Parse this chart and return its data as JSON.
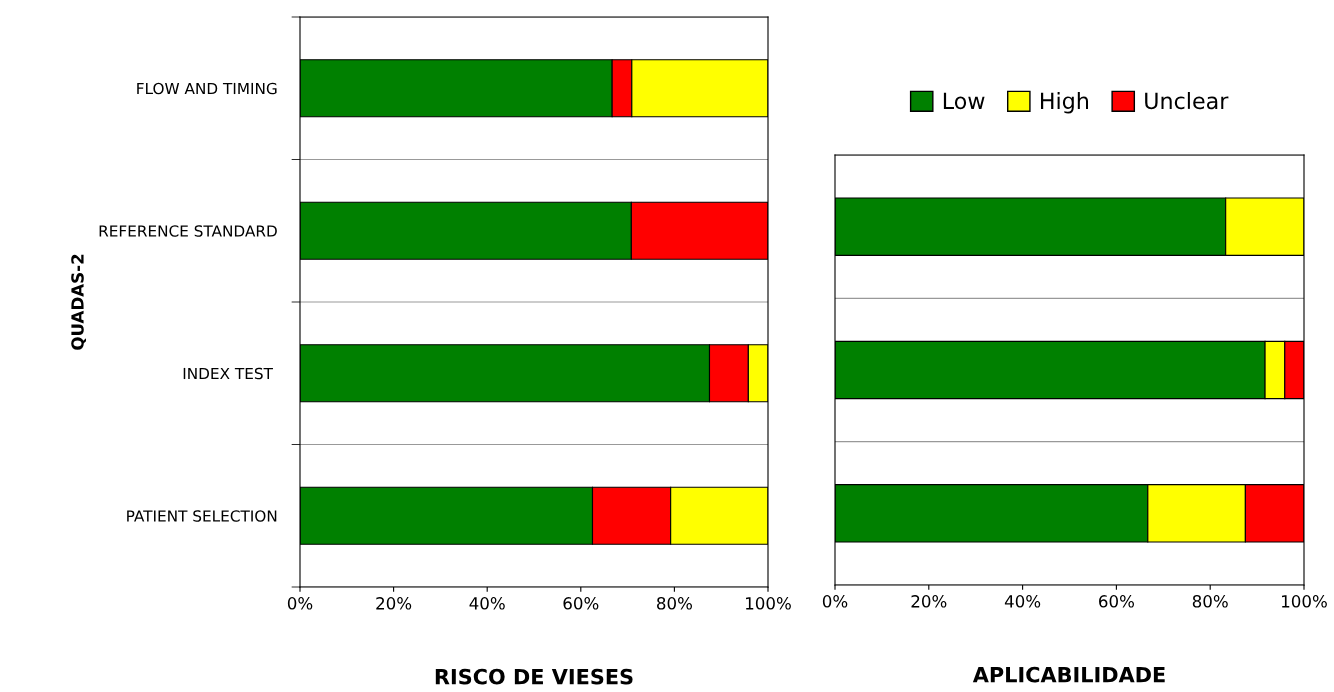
{
  "chart_data": [
    {
      "type": "bar",
      "orientation": "horizontal",
      "stacked": true,
      "ylabel": "QUADAS-2",
      "xlabel": "RISCO DE VIESES",
      "categories": [
        "FLOW AND TIMING",
        "REFERENCE STANDARD",
        "INDEX TEST ",
        "PATIENT SELECTION"
      ],
      "series": [
        {
          "color": "#008000",
          "values": [
            66.7,
            70.8,
            87.5,
            62.5
          ]
        },
        {
          "color": "#ff0000",
          "values": [
            4.2,
            29.2,
            8.3,
            16.7
          ]
        },
        {
          "color": "#ffff00",
          "values": [
            29.1,
            null,
            4.2,
            20.8
          ]
        }
      ],
      "xlim": [
        0,
        100
      ],
      "xticks": [
        {
          "value": 0,
          "label": "0%"
        },
        {
          "value": 20,
          "label": "20%"
        },
        {
          "value": 40,
          "label": "40%"
        },
        {
          "value": 60,
          "label": "60%"
        },
        {
          "value": 80,
          "label": "80%"
        },
        {
          "value": 100,
          "label": "100%"
        }
      ],
      "grid": "y"
    },
    {
      "type": "bar",
      "orientation": "horizontal",
      "stacked": true,
      "xlabel": "APLICABILIDADE",
      "categories": [
        null,
        null,
        null
      ],
      "series": [
        {
          "name": "Low",
          "color": "#008000",
          "values": [
            83.3,
            91.7,
            66.7
          ]
        },
        {
          "name": "High",
          "color": "#ffff00",
          "values": [
            16.7,
            4.2,
            20.8
          ]
        },
        {
          "name": "Unclear",
          "color": "#ff0000",
          "values": [
            null,
            4.1,
            12.5
          ]
        }
      ],
      "xlim": [
        0,
        100
      ],
      "xticks": [
        {
          "value": 0,
          "label": "0%"
        },
        {
          "value": 20,
          "label": "20%"
        },
        {
          "value": 40,
          "label": "40%"
        },
        {
          "value": 60,
          "label": "60%"
        },
        {
          "value": 80,
          "label": "80%"
        },
        {
          "value": 100,
          "label": "100%"
        }
      ],
      "grid": "y",
      "legend": "top",
      "tick_labels": "x"
    }
  ]
}
